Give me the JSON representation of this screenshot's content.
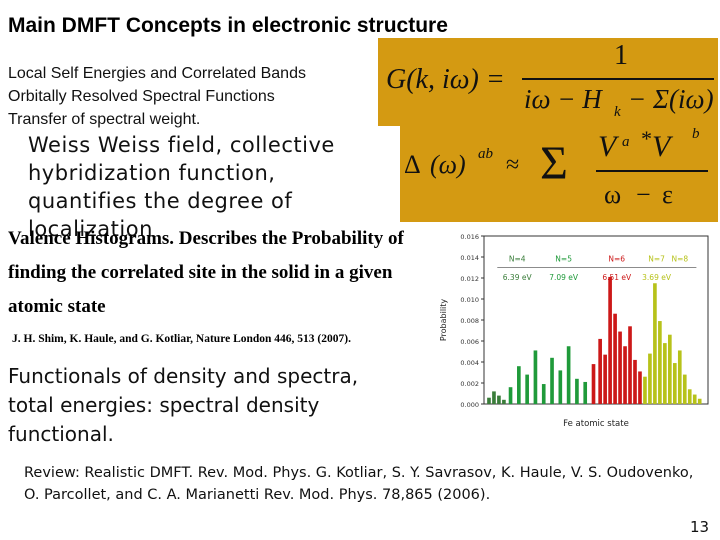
{
  "slide": {
    "title": "Main DMFT Concepts in electronic structure",
    "bullets": [
      "Local Self Energies and Correlated Bands",
      "Orbitally Resolved Spectral Functions",
      "Transfer of spectral weight."
    ],
    "weiss_text": "Weiss Weiss field, collective hybridization  function, quantifies the degree of localization",
    "valence_text": "Valence Histograms. Describes the Probability of finding the  correlated site in the solid in a given atomic state",
    "citation": "J. H. Shim, K. Haule, and G. Kotliar,  Nature London 446, 513 (2007).",
    "functionals_text": "Functionals of density and  spectra, total energies: spectral density functional.",
    "review_text": "Review:  Realistic DMFT.  Rev. Mod. Phys. G. Kotliar, S. Y. Savrasov, K. Haule, V. S. Oudovenko, O. Parcollet, and C. A. Marianetti Rev. Mod. Phys. 78,865 (2006).",
    "page_number": "13",
    "box_color": "#d49a12"
  },
  "equation1": {
    "lhs": "G(k, iω) =",
    "numerator": "1",
    "denominator": "iω − H",
    "sub_k": "k",
    "tail": "− Σ(iω)"
  },
  "equation2": {
    "delta": "Δ",
    "paren": "(ω)",
    "sup_ab": "ab",
    "V": "V",
    "sup_a": "a",
    "star": "*",
    "sup_b": "b"
  },
  "chart_data": {
    "type": "bar",
    "title": "",
    "xlabel": "Fe atomic state",
    "ylabel": "Probability",
    "ylim": [
      0,
      0.016
    ],
    "yticks": [
      "0.000",
      "0.002",
      "0.004",
      "0.006",
      "0.008",
      "0.010",
      "0.012",
      "0.014",
      "0.016"
    ],
    "groups": [
      {
        "label": "N=4",
        "energy": "6.39 eV",
        "color": "#3a7d3a"
      },
      {
        "label": "N=5",
        "energy": "7.09 eV",
        "color": "#1f9a3a"
      },
      {
        "label": "N=6",
        "energy": "6.51 eV",
        "color": "#cc1818"
      },
      {
        "label": "N=7",
        "energy": "3.69 eV",
        "color": "#b7c21a"
      },
      {
        "label": "N=8",
        "energy": "",
        "color": "#b7c21a"
      }
    ],
    "series": [
      {
        "name": "N=4",
        "x": [
          0.3,
          0.6,
          0.9,
          1.2
        ],
        "values": [
          0.0006,
          0.0012,
          0.0008,
          0.0004
        ]
      },
      {
        "name": "N=5",
        "x": [
          1.6,
          2.1,
          2.6,
          3.1,
          3.6,
          4.1,
          4.6,
          5.1,
          5.6,
          6.1
        ],
        "values": [
          0.0016,
          0.0036,
          0.0028,
          0.0051,
          0.0019,
          0.0044,
          0.0032,
          0.0055,
          0.0024,
          0.0021
        ]
      },
      {
        "name": "N=6",
        "x": [
          6.6,
          7.0,
          7.3,
          7.6,
          7.9,
          8.2,
          8.5,
          8.8,
          9.1,
          9.4
        ],
        "values": [
          0.0038,
          0.0062,
          0.0047,
          0.0121,
          0.0086,
          0.0069,
          0.0055,
          0.0074,
          0.0042,
          0.0031
        ]
      },
      {
        "name": "N=7",
        "x": [
          9.7,
          10.0,
          10.3,
          10.6,
          10.9,
          11.2,
          11.5,
          11.8,
          12.1
        ],
        "values": [
          0.0026,
          0.0048,
          0.0115,
          0.0079,
          0.0058,
          0.0066,
          0.0039,
          0.0051,
          0.0028
        ]
      },
      {
        "name": "N=8",
        "x": [
          12.4,
          12.7,
          13.0
        ],
        "values": [
          0.0014,
          0.0009,
          0.0005
        ]
      }
    ]
  }
}
